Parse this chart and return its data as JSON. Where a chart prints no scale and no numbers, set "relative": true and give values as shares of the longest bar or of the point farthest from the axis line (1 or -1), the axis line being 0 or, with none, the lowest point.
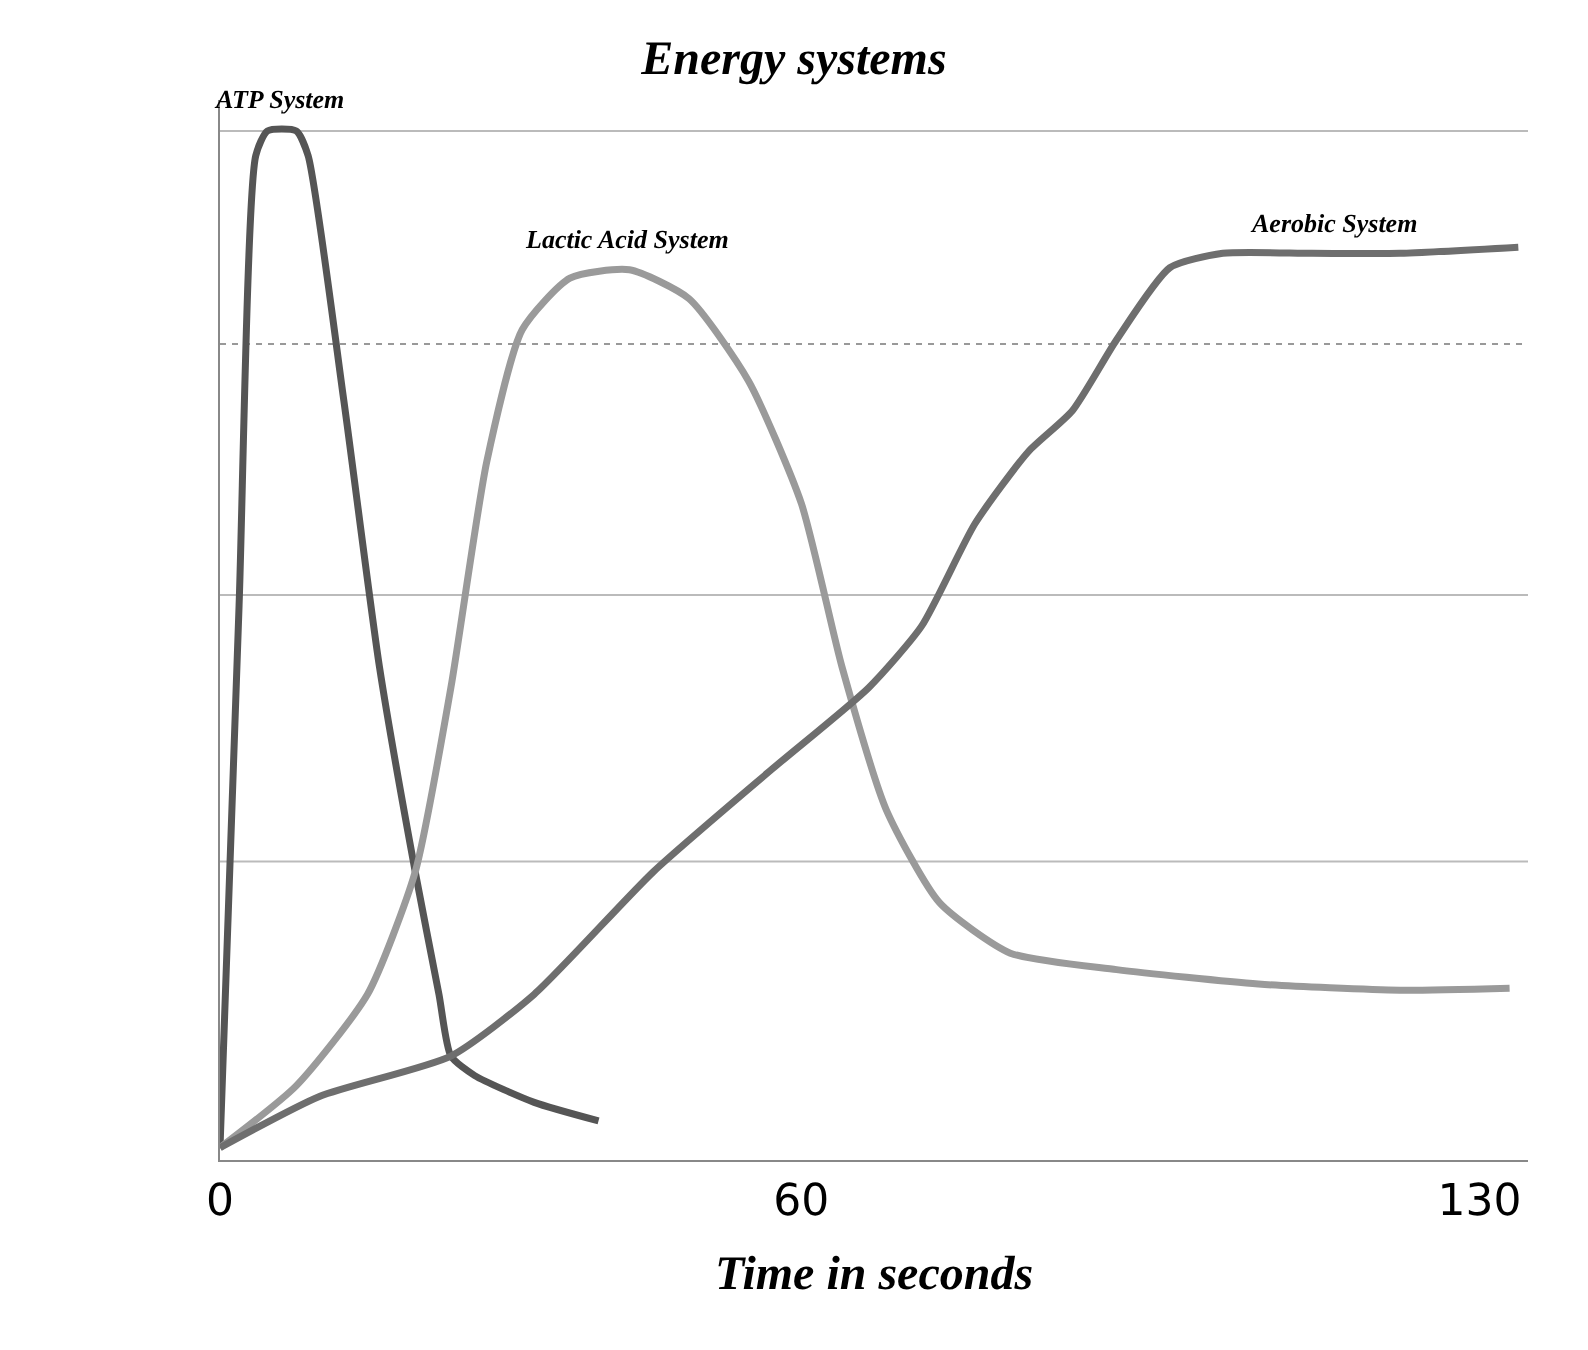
{
  "chart_data": {
    "type": "line",
    "title": "Energy systems",
    "xlabel": "Time in seconds",
    "relative": true,
    "xlim": [
      0,
      135
    ],
    "xticks": [
      0,
      60,
      130
    ],
    "grid": false,
    "marker": "none",
    "line_style": "solid",
    "series": [
      {
        "color": "#555555",
        "x": [
          0,
          1.97,
          3.69,
          4.91,
          7.86,
          9.09,
          12.78,
          16.46,
          20.15,
          22.6,
          23.83,
          26.29,
          32.43,
          39.07
        ],
        "values": [
          0.012,
          0.539,
          0.976,
          1.0,
          1.0,
          0.976,
          0.738,
          0.479,
          0.28,
          0.161,
          0.101,
          0.082,
          0.056,
          0.038
        ]
      },
      {
        "color": "#9a9a9a",
        "x": [
          0,
          7.86,
          15.23,
          20.15,
          23.83,
          27.52,
          31.2,
          36.12,
          42.26,
          48.4,
          54.55,
          60,
          64.2,
          68.78,
          74.26,
          81.57,
          92.54,
          107.17,
          121.79,
          133.1
        ],
        "values": [
          0.012,
          0.072,
          0.161,
          0.28,
          0.459,
          0.678,
          0.807,
          0.857,
          0.865,
          0.837,
          0.757,
          0.638,
          0.479,
          0.34,
          0.25,
          0.201,
          0.185,
          0.171,
          0.165,
          0.167
        ]
      },
      {
        "color": "#6e6e6e",
        "x": [
          0,
          10.32,
          23.83,
          32.43,
          44.72,
          57.0,
          66.95,
          72.43,
          77.9,
          83.4,
          87.97,
          92.54,
          98.03,
          103.5,
          112.7,
          121.8,
          134.0
        ],
        "values": [
          0.012,
          0.062,
          0.101,
          0.161,
          0.28,
          0.38,
          0.459,
          0.519,
          0.618,
          0.688,
          0.728,
          0.797,
          0.867,
          0.881,
          0.881,
          0.881,
          0.887
        ]
      }
    ],
    "ref_lines": [
      {
        "axis": "y",
        "value": 0.29,
        "color": "#bbbbbb"
      },
      {
        "axis": "y",
        "value": 0.549,
        "color": "#bbbbbb"
      },
      {
        "axis": "y",
        "value": 0.793,
        "color": "#999999",
        "line_style": "dotted"
      },
      {
        "axis": "y",
        "value": 1.0,
        "color": "#bbbbbb"
      }
    ],
    "annotations": [
      {
        "text": "ATP System",
        "x": 6,
        "y": 1.0
      },
      {
        "text": "Lactic Acid System",
        "x": 42,
        "y": 0.865
      },
      {
        "text": "Aerobic System",
        "x": 115,
        "y": 0.881
      }
    ]
  }
}
